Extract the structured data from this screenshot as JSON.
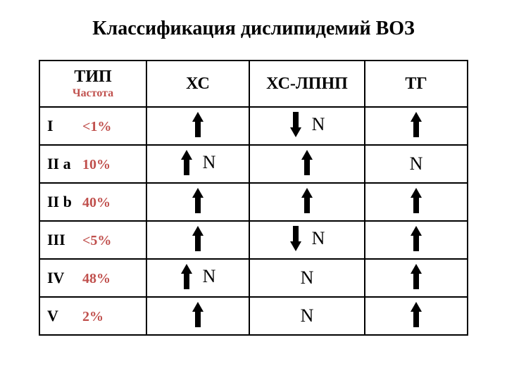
{
  "title": "Классификация дислипидемий ВОЗ",
  "colors": {
    "text": "#000000",
    "accent": "#c0504d",
    "arrow": "#000000",
    "border": "#000000",
    "background": "#ffffff"
  },
  "headers": {
    "type": "ТИП",
    "type_sub": "Частота",
    "xc": "ХС",
    "ldl": "ХС-ЛПНП",
    "tg": "ТГ"
  },
  "rows": [
    {
      "type": "I",
      "freq": "<1%",
      "xc": [
        "up"
      ],
      "ldl": [
        "down",
        "N"
      ],
      "tg": [
        "up"
      ]
    },
    {
      "type": "II a",
      "freq": "10%",
      "xc": [
        "up",
        "N"
      ],
      "ldl": [
        "up"
      ],
      "tg": [
        "N"
      ]
    },
    {
      "type": "II b",
      "freq": "40%",
      "xc": [
        "up"
      ],
      "ldl": [
        "up"
      ],
      "tg": [
        "up"
      ]
    },
    {
      "type": "III",
      "freq": "<5%",
      "xc": [
        "up"
      ],
      "ldl": [
        "down",
        "N"
      ],
      "tg": [
        "up"
      ]
    },
    {
      "type": "IV",
      "freq": "48%",
      "xc": [
        "up",
        "N"
      ],
      "ldl": [
        "N"
      ],
      "tg": [
        "up"
      ]
    },
    {
      "type": "V",
      "freq": "2%",
      "xc": [
        "up"
      ],
      "ldl": [
        "N"
      ],
      "tg": [
        "up"
      ]
    }
  ],
  "style": {
    "title_fontsize": 28,
    "header_fontsize": 24,
    "cell_fontsize": 22,
    "n_fontsize": 26,
    "arrow_width": 18,
    "arrow_height": 40
  }
}
